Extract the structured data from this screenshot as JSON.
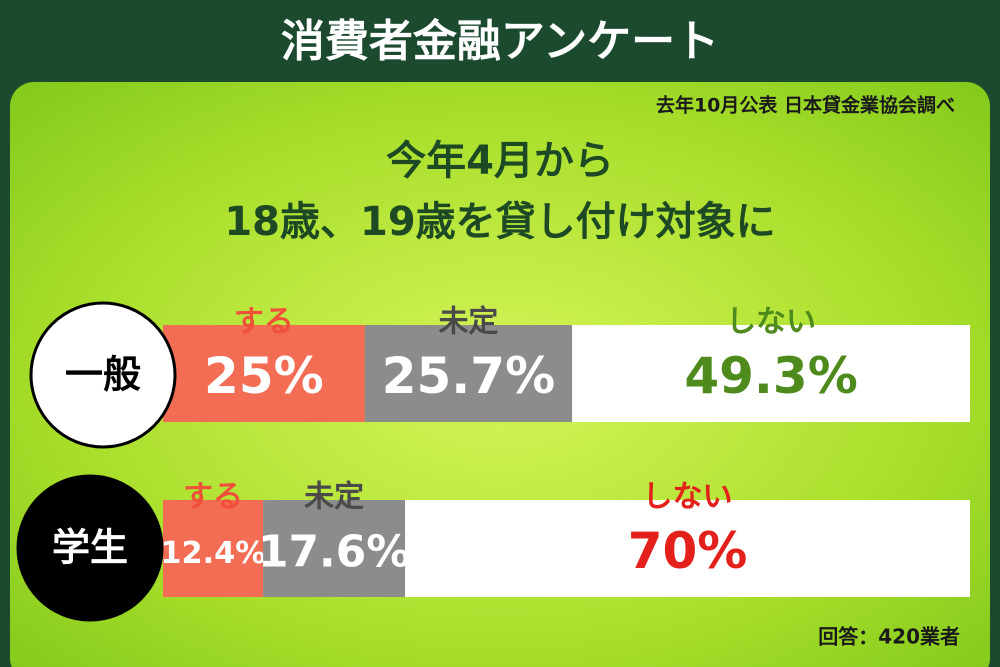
{
  "chart_data": {
    "type": "bar",
    "title": "消費者金融アンケート",
    "source": "去年10月公表 日本貸金業協会調べ",
    "subtitle": [
      "今年4月から",
      "18歳、19歳を貸し付け対象に"
    ],
    "categories": [
      "一般",
      "学生"
    ],
    "xlim": [
      0,
      100
    ],
    "series": [
      {
        "name": "する",
        "color": "#f36d55",
        "label_colors": [
          "#ffffff",
          "#ffffff"
        ],
        "values": [
          25,
          12.4
        ],
        "value_labels": [
          "25%",
          "12.4%"
        ]
      },
      {
        "name": "未定",
        "color": "#8c8c8c",
        "label_colors": [
          "#ffffff",
          "#ffffff"
        ],
        "values": [
          25.7,
          17.6
        ],
        "value_labels": [
          "25.7%",
          "17.6%"
        ]
      },
      {
        "name": "しない",
        "color": "#ffffff",
        "label_colors": [
          "#4e8a1c",
          "#e3201b"
        ],
        "values": [
          49.3,
          70
        ],
        "value_labels": [
          "49.3%",
          "70%"
        ]
      }
    ],
    "note": "回答：420業者"
  }
}
